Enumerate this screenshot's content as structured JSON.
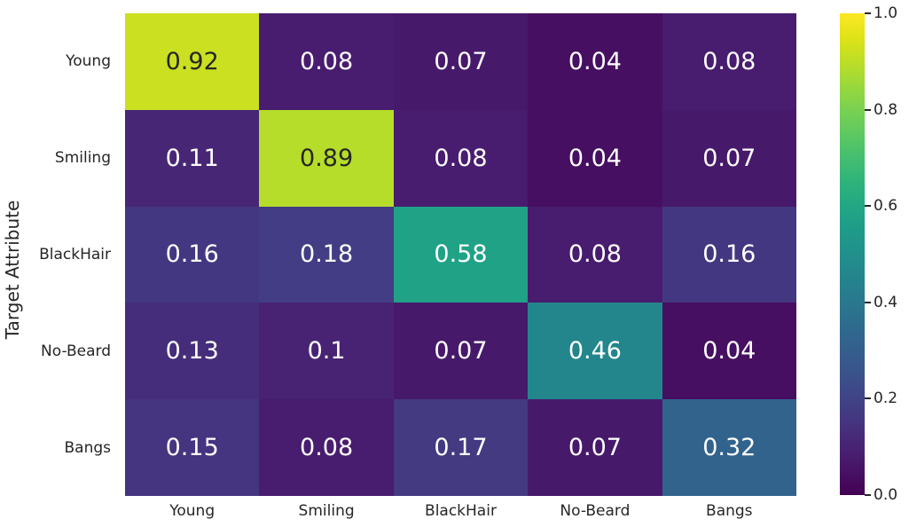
{
  "figure": {
    "background_color": "#ffffff",
    "text_color": "#262626"
  },
  "chart_data": {
    "type": "heatmap",
    "title": "",
    "xlabel": "",
    "ylabel": "Target Attribute",
    "x_categories": [
      "Young",
      "Smiling",
      "BlackHair",
      "No-Beard",
      "Bangs"
    ],
    "y_categories": [
      "Young",
      "Smiling",
      "BlackHair",
      "No-Beard",
      "Bangs"
    ],
    "values": [
      [
        0.92,
        0.08,
        0.07,
        0.04,
        0.08
      ],
      [
        0.11,
        0.89,
        0.08,
        0.04,
        0.07
      ],
      [
        0.16,
        0.18,
        0.58,
        0.08,
        0.16
      ],
      [
        0.13,
        0.1,
        0.07,
        0.46,
        0.04
      ],
      [
        0.15,
        0.08,
        0.17,
        0.07,
        0.32
      ]
    ],
    "vmin": 0.0,
    "vmax": 1.0,
    "grid": false,
    "annotated": true,
    "annotation_dark_color": "#262626",
    "annotation_light_color": "#ffffff",
    "colormap": "viridis",
    "colormap_stops": [
      "#440154",
      "#471265",
      "#482374",
      "#45347f",
      "#404387",
      "#3a528b",
      "#345e8d",
      "#2e6b8e",
      "#29788e",
      "#24848d",
      "#21908c",
      "#1e9b89",
      "#22a784",
      "#2fb37b",
      "#44be70",
      "#5ec961",
      "#79d151",
      "#9ad83c",
      "#bdde26",
      "#dfe318",
      "#fde724"
    ],
    "colorbar": {
      "position": "right",
      "tick_labels": [
        "1.0",
        "0.8",
        "0.6",
        "0.4",
        "0.2",
        "0.0"
      ]
    }
  }
}
